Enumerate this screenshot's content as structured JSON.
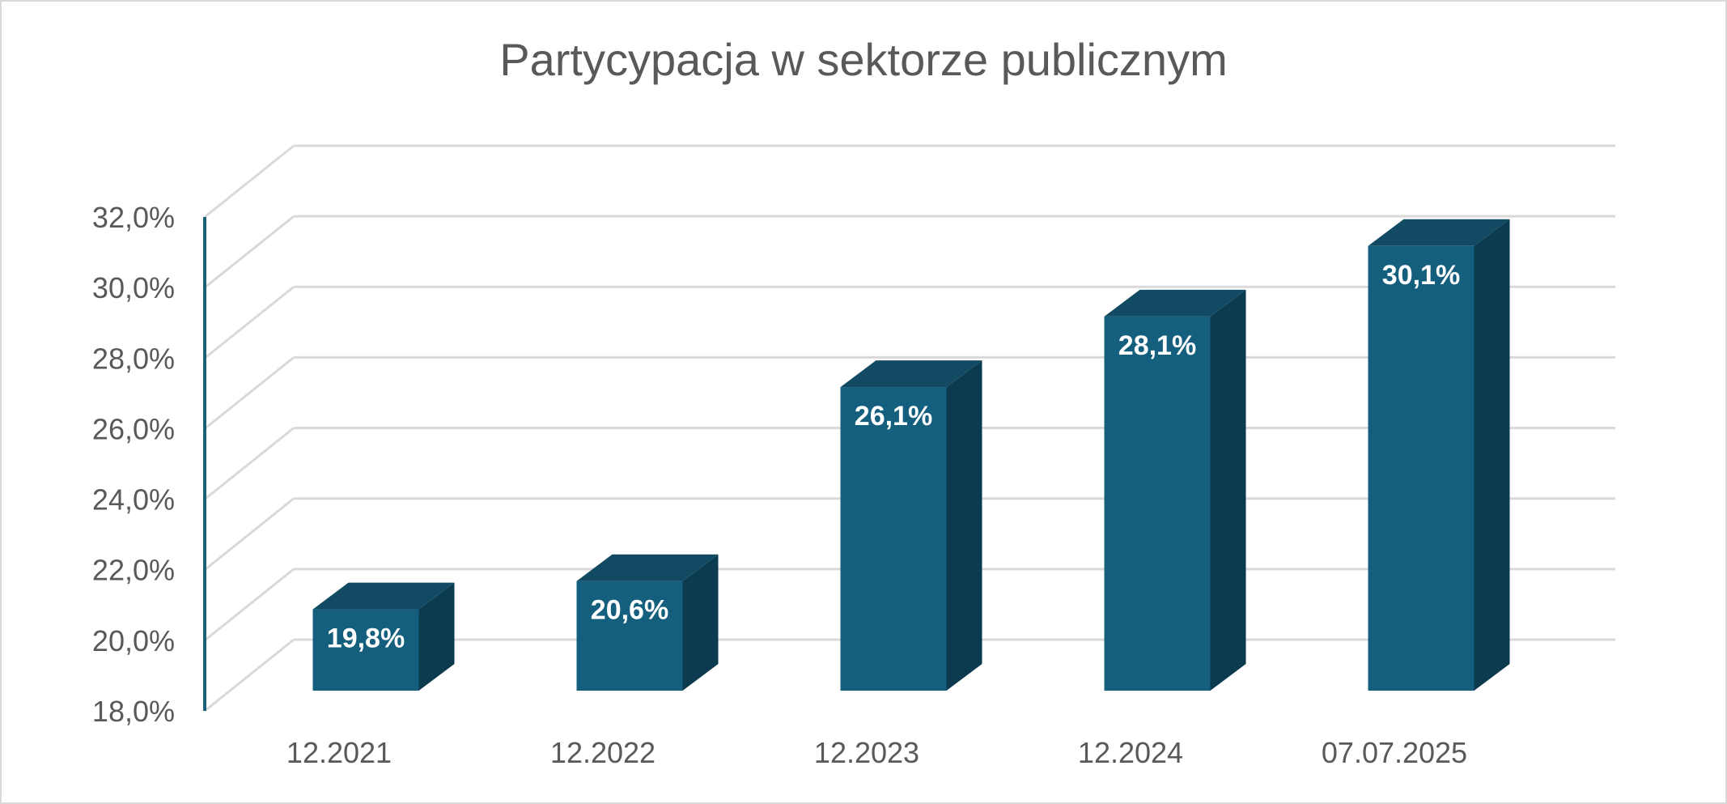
{
  "chart_data": {
    "type": "bar",
    "title": "Partycypacja w sektorze publicznym",
    "categories": [
      "12.2021",
      "12.2022",
      "12.2023",
      "12.2024",
      "07.07.2025"
    ],
    "values": [
      19.8,
      20.6,
      26.1,
      28.1,
      30.1
    ],
    "data_labels": [
      "19,8%",
      "20,6%",
      "26,1%",
      "28,1%",
      "30,1%"
    ],
    "y_tick_labels": [
      "18,0%",
      "20,0%",
      "22,0%",
      "24,0%",
      "26,0%",
      "28,0%",
      "30,0%",
      "32,0%"
    ],
    "ylim": [
      18,
      32
    ],
    "y_step": 2,
    "grid": true,
    "legend": "none",
    "style": "3d-column",
    "colors": {
      "bar_front": "#155f7e",
      "bar_side": "#0c3b4f",
      "bar_top": "#124a63",
      "grid": "#d9d9d9",
      "axis": "#1a6178",
      "text": "#595959"
    }
  }
}
